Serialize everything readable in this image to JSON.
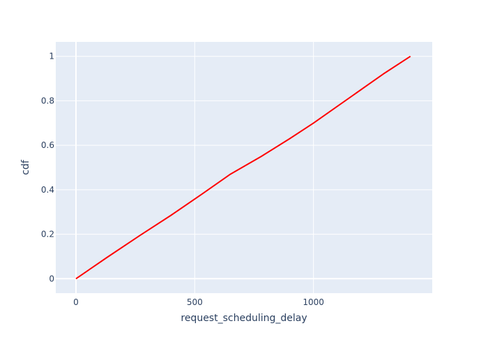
{
  "chart_data": {
    "type": "line",
    "xlabel": "request_scheduling_delay",
    "ylabel": "cdf",
    "xlim": [
      -85,
      1500
    ],
    "ylim": [
      -0.065,
      1.065
    ],
    "x_ticks": [
      0,
      500,
      1000
    ],
    "y_ticks": [
      0,
      0.2,
      0.4,
      0.6,
      0.8,
      1
    ],
    "x_tick_labels": [
      "0",
      "500",
      "1000"
    ],
    "y_tick_labels": [
      "0",
      "0.2",
      "0.4",
      "0.6",
      "0.8",
      "1"
    ],
    "grid": true,
    "series": [
      {
        "color": "#ff0000",
        "x": [
          0,
          130,
          270,
          400,
          530,
          650,
          780,
          900,
          1000,
          1100,
          1200,
          1300,
          1408
        ],
        "y": [
          0,
          0.095,
          0.195,
          0.285,
          0.38,
          0.47,
          0.55,
          0.63,
          0.7,
          0.775,
          0.85,
          0.925,
          1
        ]
      }
    ],
    "colors": {
      "plot_background": "#e5ecf6",
      "grid": "#ffffff",
      "text": "#2a3f5f"
    }
  }
}
